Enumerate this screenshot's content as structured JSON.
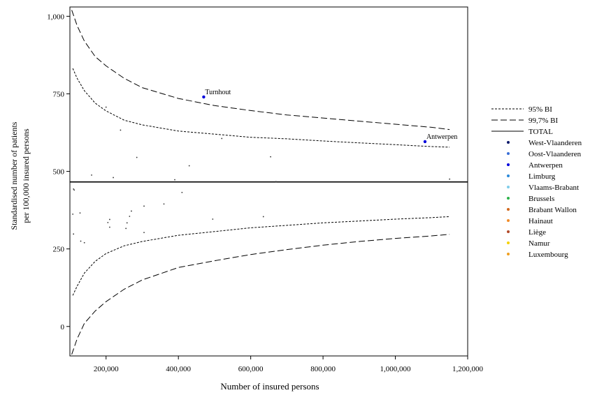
{
  "chart_data": {
    "type": "scatter",
    "title": "",
    "xlabel": "Number of insured persons",
    "ylabel_lines": [
      "Standardised number of patients",
      "per 100,000 insured persons"
    ],
    "xlim": [
      100000,
      1200000
    ],
    "ylim": [
      -95,
      1030
    ],
    "x_ticks": [
      {
        "value": 200000,
        "label": "200,000"
      },
      {
        "value": 400000,
        "label": "400,000"
      },
      {
        "value": 600000,
        "label": "600,000"
      },
      {
        "value": 800000,
        "label": "800,000"
      },
      {
        "value": 1000000,
        "label": "1,000,000"
      },
      {
        "value": 1200000,
        "label": "1,200,000"
      }
    ],
    "y_ticks": [
      {
        "value": 0,
        "label": "0"
      },
      {
        "value": 250,
        "label": "250"
      },
      {
        "value": 500,
        "label": "500"
      },
      {
        "value": 750,
        "label": "750"
      },
      {
        "value": 1000,
        "label": "1,000"
      }
    ],
    "total": 466,
    "limits": {
      "ci95": {
        "label": "95% BI",
        "dash": "3,2",
        "x": [
          108000,
          120000,
          140000,
          170000,
          200000,
          250000,
          300000,
          400000,
          500000,
          600000,
          700000,
          800000,
          900000,
          1000000,
          1100000,
          1150000
        ],
        "upper": [
          832,
          800,
          760,
          720,
          695,
          665,
          650,
          630,
          620,
          610,
          605,
          598,
          592,
          586,
          580,
          578
        ],
        "lower": [
          100,
          130,
          172,
          210,
          235,
          260,
          274,
          294,
          306,
          318,
          326,
          334,
          340,
          346,
          351,
          354
        ]
      },
      "ci997": {
        "label": "99,7% BI",
        "dash": "9,4",
        "x": [
          105000,
          120000,
          140000,
          170000,
          200000,
          250000,
          300000,
          400000,
          500000,
          600000,
          700000,
          800000,
          900000,
          1000000,
          1100000,
          1150000
        ],
        "upper": [
          1020,
          970,
          920,
          870,
          840,
          800,
          770,
          735,
          712,
          696,
          682,
          672,
          662,
          652,
          642,
          635
        ],
        "lower": [
          -90,
          -40,
          10,
          50,
          80,
          120,
          150,
          190,
          212,
          232,
          248,
          262,
          274,
          284,
          292,
          297
        ]
      }
    },
    "legend": {
      "placement": "right",
      "entries": [
        {
          "label": "95% BI",
          "kind": "line",
          "dash": "3,2"
        },
        {
          "label": "99,7% BI",
          "kind": "line",
          "dash": "9,4"
        },
        {
          "label": "TOTAL",
          "kind": "line",
          "dash": ""
        },
        {
          "label": "West-Vlaanderen",
          "kind": "dot",
          "color": "#0d1a6b"
        },
        {
          "label": "Oost-Vlaanderen",
          "kind": "dot",
          "color": "#3a6fd6"
        },
        {
          "label": "Antwerpen",
          "kind": "dot",
          "color": "#0000dd"
        },
        {
          "label": "Limburg",
          "kind": "dot",
          "color": "#2b8ad9"
        },
        {
          "label": "Vlaams-Brabant",
          "kind": "dot",
          "color": "#7fcdea"
        },
        {
          "label": "Brussels",
          "kind": "dot",
          "color": "#2db34a"
        },
        {
          "label": "Brabant Wallon",
          "kind": "dot",
          "color": "#d2691e"
        },
        {
          "label": "Hainaut",
          "kind": "dot",
          "color": "#f28c28"
        },
        {
          "label": "Liège",
          "kind": "dot",
          "color": "#b24a2a"
        },
        {
          "label": "Namur",
          "kind": "dot",
          "color": "#f5d200"
        },
        {
          "label": "Luxembourg",
          "kind": "dot",
          "color": "#f0a020"
        }
      ]
    },
    "labeled_points": [
      {
        "label": "Turnhout",
        "x": 470000,
        "y": 740,
        "color": "#0000dd"
      },
      {
        "label": "Antwerpen",
        "x": 1082000,
        "y": 596,
        "color": "#0000dd"
      }
    ],
    "points": [
      [
        110000,
        443
      ],
      [
        112000,
        440
      ],
      [
        108000,
        362
      ],
      [
        110000,
        298
      ],
      [
        128000,
        366
      ],
      [
        130000,
        275
      ],
      [
        140000,
        270
      ],
      [
        160000,
        488
      ],
      [
        200000,
        707
      ],
      [
        220000,
        480
      ],
      [
        205000,
        335
      ],
      [
        210000,
        345
      ],
      [
        210000,
        320
      ],
      [
        240000,
        633
      ],
      [
        255000,
        316
      ],
      [
        258000,
        334
      ],
      [
        265000,
        355
      ],
      [
        270000,
        372
      ],
      [
        285000,
        545
      ],
      [
        305000,
        303
      ],
      [
        305000,
        388
      ],
      [
        360000,
        395
      ],
      [
        390000,
        473
      ],
      [
        410000,
        432
      ],
      [
        430000,
        518
      ],
      [
        495000,
        346
      ],
      [
        520000,
        606
      ],
      [
        635000,
        354
      ],
      [
        655000,
        547
      ],
      [
        670000,
        467
      ],
      [
        1150000,
        475
      ]
    ]
  }
}
